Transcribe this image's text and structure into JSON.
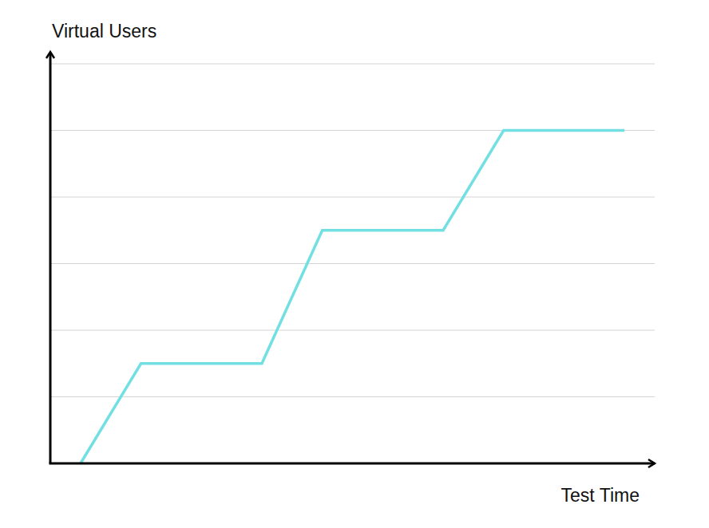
{
  "chart_data": {
    "type": "line",
    "y_label": "Virtual Users",
    "x_label": "Test Time",
    "x": [
      0.5,
      1.5,
      3.5,
      4.5,
      6.5,
      7.5,
      9.5
    ],
    "values": [
      0,
      1.5,
      1.5,
      3.5,
      3.5,
      5,
      5
    ],
    "color": "#72dfe2",
    "xlim": [
      0,
      10
    ],
    "ylim": [
      0,
      6
    ],
    "yticks": [
      0,
      1,
      2,
      3,
      4,
      5,
      6
    ],
    "grid": true,
    "tick_labels": false
  }
}
